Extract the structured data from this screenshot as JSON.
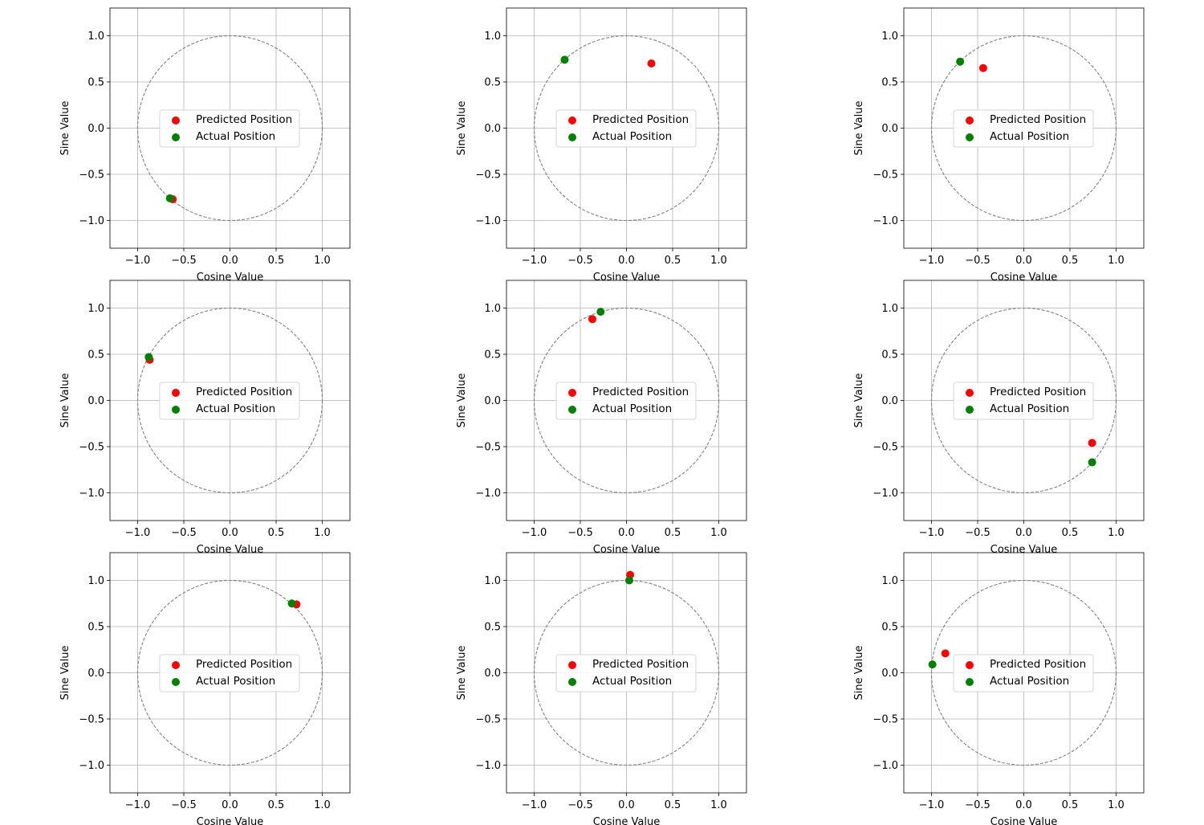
{
  "chart_data": [
    {
      "type": "scatter",
      "xlabel": "Cosine Value",
      "ylabel": "Sine Value",
      "xlim": [
        -1.3,
        1.3
      ],
      "ylim": [
        -1.3,
        1.3
      ],
      "xticks": [
        "−1.0",
        "−0.5",
        "0.0",
        "0.5",
        "1.0"
      ],
      "yticks": [
        "−1.0",
        "−0.5",
        "0.0",
        "0.5",
        "1.0"
      ],
      "grid": true,
      "legend": "center",
      "unit_circle": true,
      "series": [
        {
          "name": "Predicted Position",
          "color": "#ff0000",
          "x": [
            -0.62
          ],
          "y": [
            -0.77
          ]
        },
        {
          "name": "Actual Position",
          "color": "#008000",
          "x": [
            -0.65
          ],
          "y": [
            -0.76
          ]
        }
      ]
    },
    {
      "type": "scatter",
      "xlabel": "Cosine Value",
      "ylabel": "Sine Value",
      "xlim": [
        -1.3,
        1.3
      ],
      "ylim": [
        -1.3,
        1.3
      ],
      "xticks": [
        "−1.0",
        "−0.5",
        "0.0",
        "0.5",
        "1.0"
      ],
      "yticks": [
        "−1.0",
        "−0.5",
        "0.0",
        "0.5",
        "1.0"
      ],
      "grid": true,
      "legend": "center",
      "unit_circle": true,
      "series": [
        {
          "name": "Predicted Position",
          "color": "#ff0000",
          "x": [
            0.27
          ],
          "y": [
            0.7
          ]
        },
        {
          "name": "Actual Position",
          "color": "#008000",
          "x": [
            -0.67
          ],
          "y": [
            0.74
          ]
        }
      ]
    },
    {
      "type": "scatter",
      "xlabel": "Cosine Value",
      "ylabel": "Sine Value",
      "xlim": [
        -1.3,
        1.3
      ],
      "ylim": [
        -1.3,
        1.3
      ],
      "xticks": [
        "−1.0",
        "−0.5",
        "0.0",
        "0.5",
        "1.0"
      ],
      "yticks": [
        "−1.0",
        "−0.5",
        "0.0",
        "0.5",
        "1.0"
      ],
      "grid": true,
      "legend": "center",
      "unit_circle": true,
      "series": [
        {
          "name": "Predicted Position",
          "color": "#ff0000",
          "x": [
            -0.44
          ],
          "y": [
            0.65
          ]
        },
        {
          "name": "Actual Position",
          "color": "#008000",
          "x": [
            -0.69
          ],
          "y": [
            0.72
          ]
        }
      ]
    },
    {
      "type": "scatter",
      "xlabel": "Cosine Value",
      "ylabel": "Sine Value",
      "xlim": [
        -1.3,
        1.3
      ],
      "ylim": [
        -1.3,
        1.3
      ],
      "xticks": [
        "−1.0",
        "−0.5",
        "0.0",
        "0.5",
        "1.0"
      ],
      "yticks": [
        "−1.0",
        "−0.5",
        "0.0",
        "0.5",
        "1.0"
      ],
      "grid": true,
      "legend": "center",
      "unit_circle": true,
      "series": [
        {
          "name": "Predicted Position",
          "color": "#ff0000",
          "x": [
            -0.87
          ],
          "y": [
            0.44
          ]
        },
        {
          "name": "Actual Position",
          "color": "#008000",
          "x": [
            -0.88
          ],
          "y": [
            0.47
          ]
        }
      ]
    },
    {
      "type": "scatter",
      "xlabel": "Cosine Value",
      "ylabel": "Sine Value",
      "xlim": [
        -1.3,
        1.3
      ],
      "ylim": [
        -1.3,
        1.3
      ],
      "xticks": [
        "−1.0",
        "−0.5",
        "0.0",
        "0.5",
        "1.0"
      ],
      "yticks": [
        "−1.0",
        "−0.5",
        "0.0",
        "0.5",
        "1.0"
      ],
      "grid": true,
      "legend": "center",
      "unit_circle": true,
      "series": [
        {
          "name": "Predicted Position",
          "color": "#ff0000",
          "x": [
            -0.37
          ],
          "y": [
            0.88
          ]
        },
        {
          "name": "Actual Position",
          "color": "#008000",
          "x": [
            -0.28
          ],
          "y": [
            0.96
          ]
        }
      ]
    },
    {
      "type": "scatter",
      "xlabel": "Cosine Value",
      "ylabel": "Sine Value",
      "xlim": [
        -1.3,
        1.3
      ],
      "ylim": [
        -1.3,
        1.3
      ],
      "xticks": [
        "−1.0",
        "−0.5",
        "0.0",
        "0.5",
        "1.0"
      ],
      "yticks": [
        "−1.0",
        "−0.5",
        "0.0",
        "0.5",
        "1.0"
      ],
      "grid": true,
      "legend": "center",
      "unit_circle": true,
      "series": [
        {
          "name": "Predicted Position",
          "color": "#ff0000",
          "x": [
            0.74
          ],
          "y": [
            -0.46
          ]
        },
        {
          "name": "Actual Position",
          "color": "#008000",
          "x": [
            0.74
          ],
          "y": [
            -0.67
          ]
        }
      ]
    },
    {
      "type": "scatter",
      "xlabel": "Cosine Value",
      "ylabel": "Sine Value",
      "xlim": [
        -1.3,
        1.3
      ],
      "ylim": [
        -1.3,
        1.3
      ],
      "xticks": [
        "−1.0",
        "−0.5",
        "0.0",
        "0.5",
        "1.0"
      ],
      "yticks": [
        "−1.0",
        "−0.5",
        "0.0",
        "0.5",
        "1.0"
      ],
      "grid": true,
      "legend": "center",
      "unit_circle": true,
      "series": [
        {
          "name": "Predicted Position",
          "color": "#ff0000",
          "x": [
            0.72
          ],
          "y": [
            0.74
          ]
        },
        {
          "name": "Actual Position",
          "color": "#008000",
          "x": [
            0.67
          ],
          "y": [
            0.75
          ]
        }
      ]
    },
    {
      "type": "scatter",
      "xlabel": "Cosine Value",
      "ylabel": "Sine Value",
      "xlim": [
        -1.3,
        1.3
      ],
      "ylim": [
        -1.3,
        1.3
      ],
      "xticks": [
        "−1.0",
        "−0.5",
        "0.0",
        "0.5",
        "1.0"
      ],
      "yticks": [
        "−1.0",
        "−0.5",
        "0.0",
        "0.5",
        "1.0"
      ],
      "grid": true,
      "legend": "center",
      "unit_circle": true,
      "series": [
        {
          "name": "Predicted Position",
          "color": "#ff0000",
          "x": [
            0.04
          ],
          "y": [
            1.06
          ]
        },
        {
          "name": "Actual Position",
          "color": "#008000",
          "x": [
            0.03
          ],
          "y": [
            1.0
          ]
        }
      ]
    },
    {
      "type": "scatter",
      "xlabel": "Cosine Value",
      "ylabel": "Sine Value",
      "xlim": [
        -1.3,
        1.3
      ],
      "ylim": [
        -1.3,
        1.3
      ],
      "xticks": [
        "−1.0",
        "−0.5",
        "0.0",
        "0.5",
        "1.0"
      ],
      "yticks": [
        "−1.0",
        "−0.5",
        "0.0",
        "0.5",
        "1.0"
      ],
      "grid": true,
      "legend": "center",
      "unit_circle": true,
      "series": [
        {
          "name": "Predicted Position",
          "color": "#ff0000",
          "x": [
            -0.85
          ],
          "y": [
            0.21
          ]
        },
        {
          "name": "Actual Position",
          "color": "#008000",
          "x": [
            -0.99
          ],
          "y": [
            0.09
          ]
        }
      ]
    }
  ]
}
